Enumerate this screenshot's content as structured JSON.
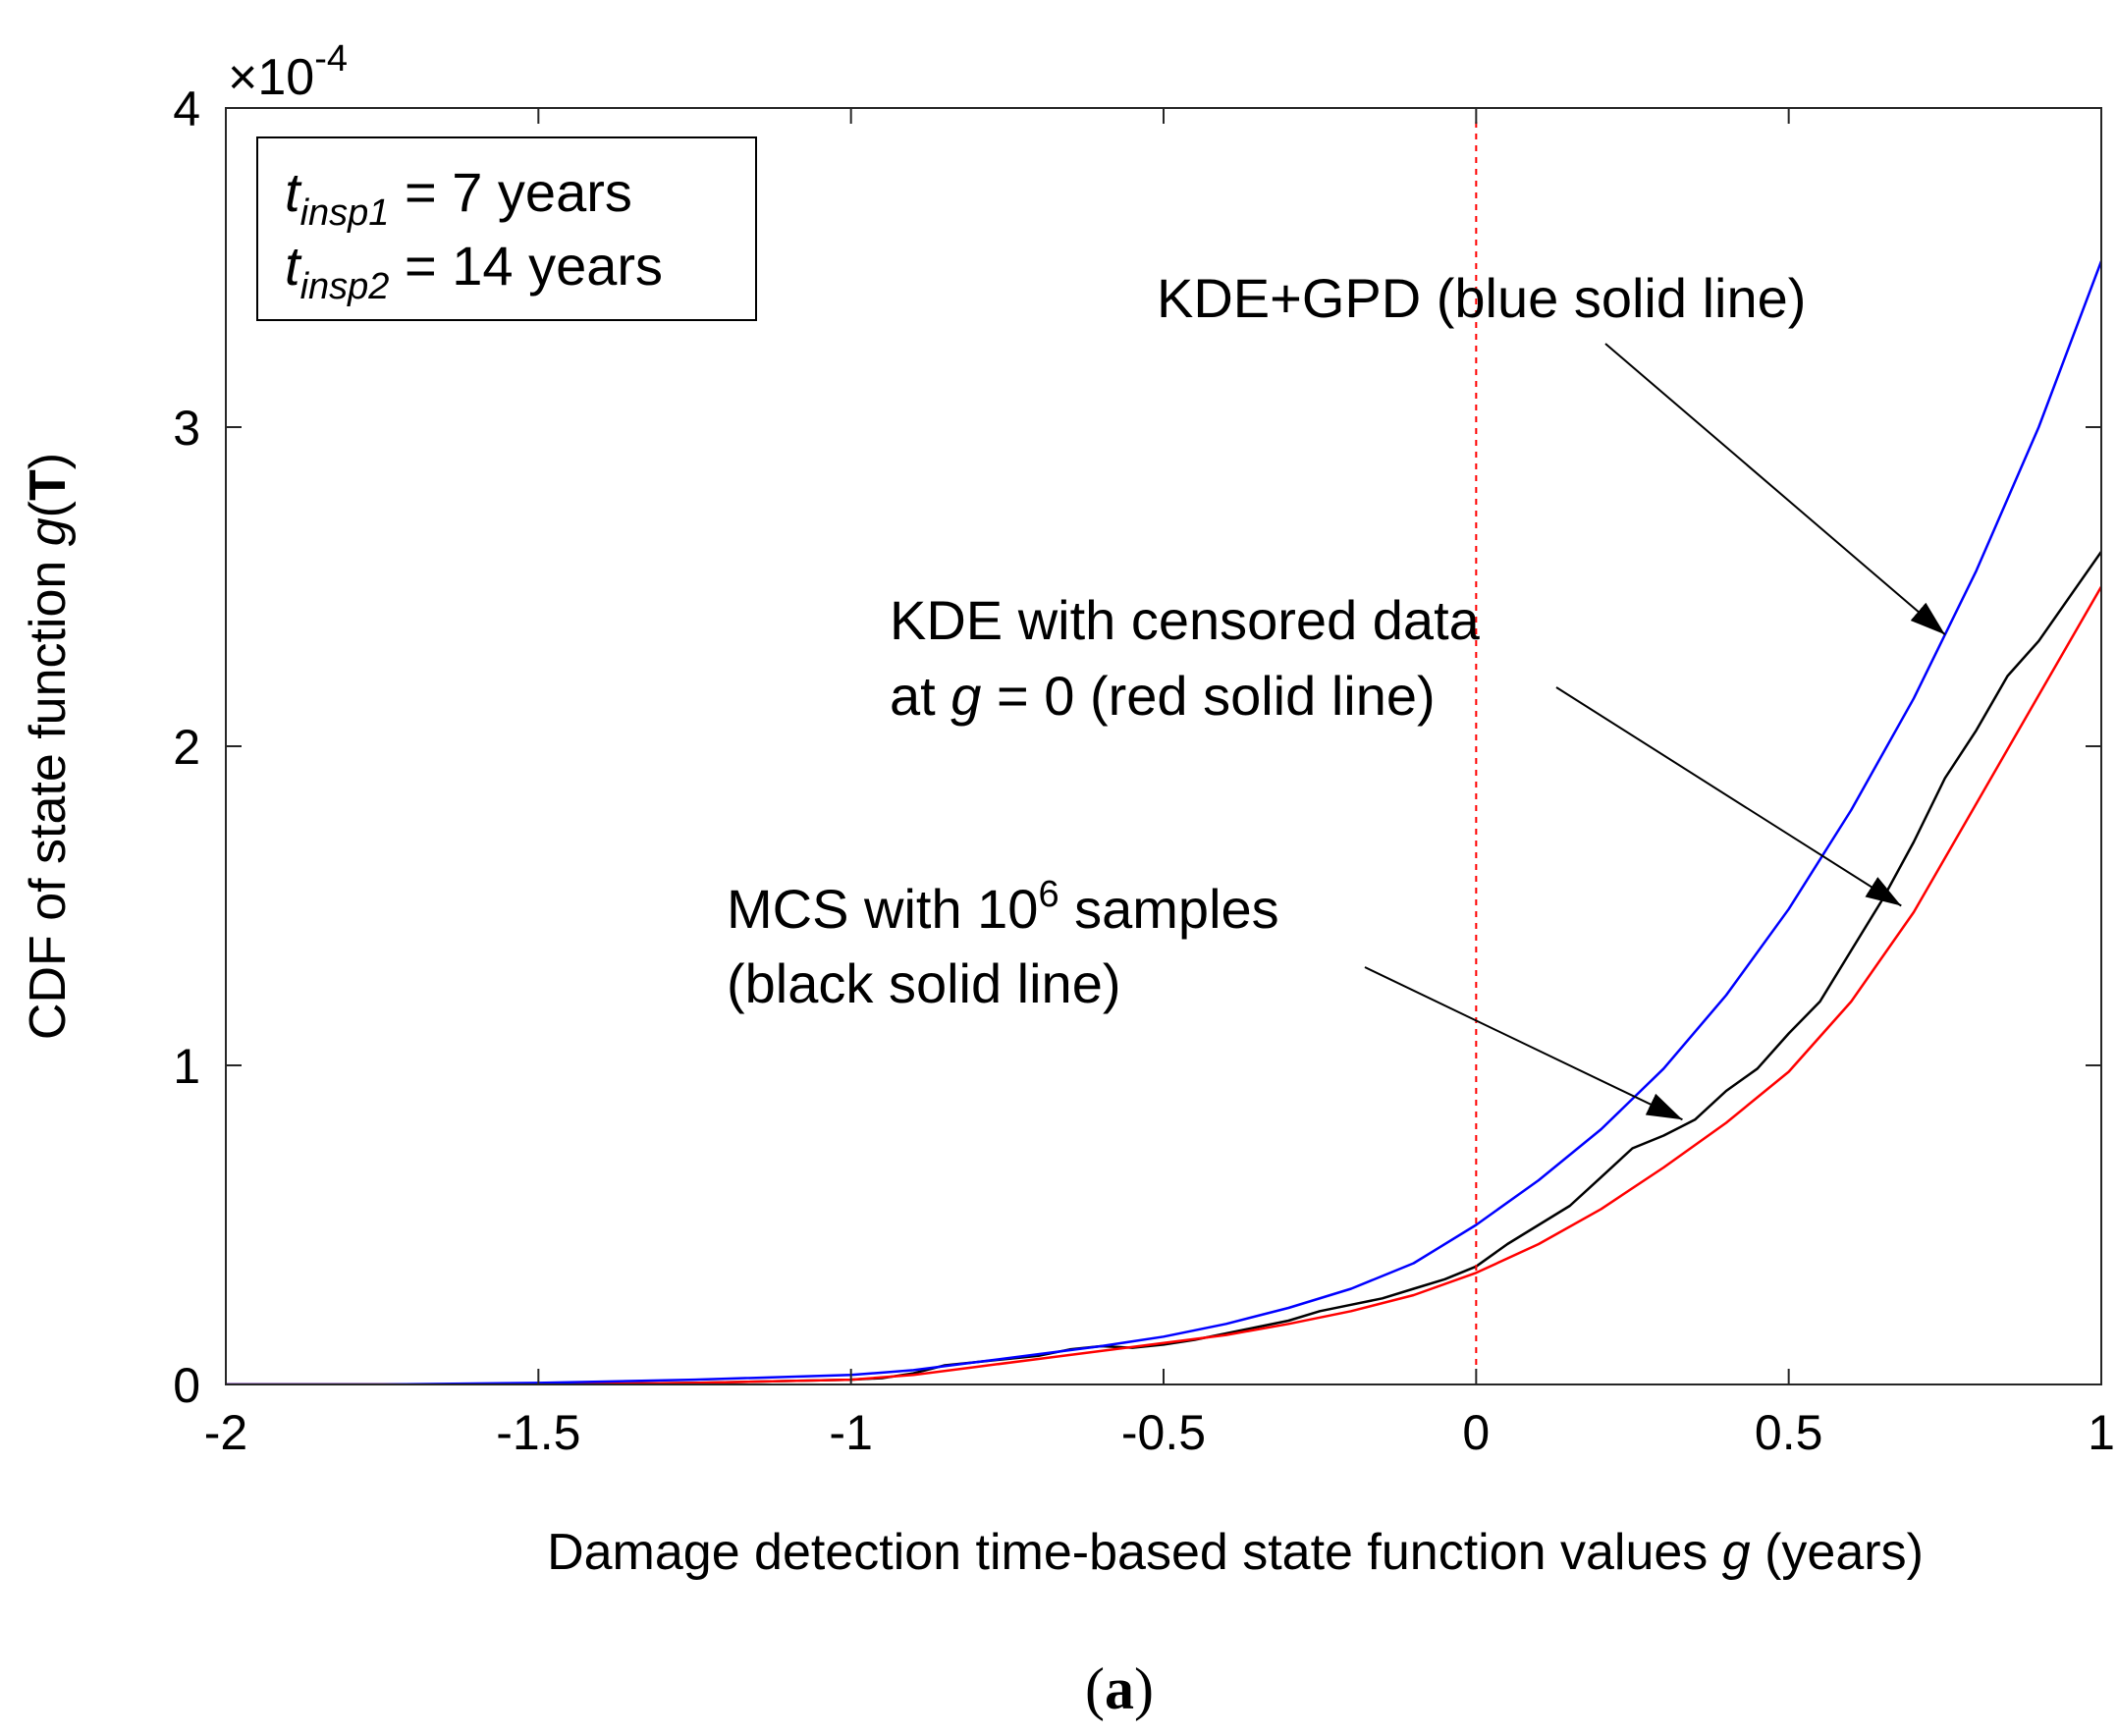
{
  "chart_data": {
    "type": "line",
    "title": "",
    "xlabel": {
      "pre": "Damage detection time-based state function values ",
      "var": "g",
      "post": " (years)"
    },
    "ylabel": {
      "pre": "CDF of state function ",
      "var": "g",
      "open": "(",
      "bold": "T",
      "close": ")"
    },
    "xlim": [
      -2,
      1
    ],
    "ylim": [
      0,
      4
    ],
    "x_ticks": [
      -2,
      -1.5,
      -1,
      -0.5,
      0,
      0.5,
      1
    ],
    "x_tick_labels": [
      "-2",
      "-1.5",
      "-1",
      "-0.5",
      "0",
      "0.5",
      "1"
    ],
    "y_ticks": [
      0,
      1,
      2,
      3,
      4
    ],
    "y_tick_labels": [
      "0",
      "1",
      "2",
      "3",
      "4"
    ],
    "y_multiplier": {
      "base": "×10",
      "exp": "-4"
    },
    "grid": false,
    "vline": {
      "x": 0,
      "color": "#ff0000",
      "style": "dashed"
    },
    "series": [
      {
        "name": "KDE+GPD (blue solid line)",
        "color": "#0000ff",
        "x": [
          -2,
          -1.75,
          -1.5,
          -1.25,
          -1.0,
          -0.9,
          -0.8,
          -0.7,
          -0.6,
          -0.5,
          -0.4,
          -0.3,
          -0.2,
          -0.1,
          0.0,
          0.1,
          0.2,
          0.3,
          0.4,
          0.5,
          0.6,
          0.7,
          0.8,
          0.9,
          1.0
        ],
        "values": [
          0.0,
          0.0,
          0.005,
          0.015,
          0.03,
          0.045,
          0.07,
          0.095,
          0.12,
          0.15,
          0.19,
          0.24,
          0.3,
          0.38,
          0.5,
          0.64,
          0.8,
          0.99,
          1.22,
          1.49,
          1.8,
          2.15,
          2.55,
          3.0,
          3.52
        ]
      },
      {
        "name": "KDE with censored data at g = 0 (red solid line)",
        "color": "#ff0000",
        "x": [
          -2,
          -1.5,
          -1.25,
          -1.0,
          -0.9,
          -0.8,
          -0.7,
          -0.6,
          -0.5,
          -0.4,
          -0.3,
          -0.2,
          -0.1,
          0.0,
          0.1,
          0.2,
          0.3,
          0.4,
          0.5,
          0.6,
          0.7,
          0.8,
          0.9,
          1.0
        ],
        "values": [
          0.0,
          0.0,
          0.005,
          0.015,
          0.03,
          0.055,
          0.08,
          0.105,
          0.13,
          0.155,
          0.19,
          0.23,
          0.28,
          0.35,
          0.44,
          0.55,
          0.68,
          0.82,
          0.98,
          1.2,
          1.48,
          1.82,
          2.16,
          2.5
        ]
      },
      {
        "name": "MCS with 10^6 samples (black solid line)",
        "color": "#000000",
        "x": [
          -2,
          -1.5,
          -1.25,
          -1.0,
          -0.95,
          -0.9,
          -0.85,
          -0.8,
          -0.75,
          -0.7,
          -0.65,
          -0.6,
          -0.55,
          -0.5,
          -0.45,
          -0.4,
          -0.35,
          -0.3,
          -0.25,
          -0.2,
          -0.15,
          -0.1,
          -0.05,
          0.0,
          0.05,
          0.1,
          0.15,
          0.2,
          0.25,
          0.3,
          0.35,
          0.4,
          0.45,
          0.5,
          0.55,
          0.6,
          0.65,
          0.7,
          0.75,
          0.8,
          0.85,
          0.9,
          0.95,
          1.0
        ],
        "values": [
          0.0,
          0.0,
          0.005,
          0.015,
          0.02,
          0.035,
          0.06,
          0.07,
          0.08,
          0.09,
          0.11,
          0.12,
          0.115,
          0.125,
          0.14,
          0.16,
          0.18,
          0.2,
          0.23,
          0.25,
          0.27,
          0.3,
          0.33,
          0.37,
          0.44,
          0.5,
          0.56,
          0.65,
          0.74,
          0.78,
          0.83,
          0.92,
          0.99,
          1.1,
          1.2,
          1.36,
          1.52,
          1.7,
          1.9,
          2.05,
          2.22,
          2.33,
          2.47,
          2.61
        ]
      }
    ],
    "annotations": [
      {
        "lines": [
          {
            "pre": "KDE+GPD (blue solid line)"
          }
        ],
        "target": [
          0.75,
          2.35
        ]
      },
      {
        "lines": [
          {
            "pre": "KDE with censored data"
          },
          {
            "pre": "at ",
            "var": "g",
            "post": " = 0 (red solid line)"
          }
        ],
        "target": [
          0.68,
          1.5
        ]
      },
      {
        "lines": [
          {
            "pre": "MCS with 10",
            "sup": "6",
            "post": " samples"
          },
          {
            "pre": "(black solid line)"
          }
        ],
        "target": [
          0.33,
          0.83
        ]
      }
    ],
    "legend_box": {
      "placement": "top-left",
      "lines": [
        {
          "var": "t",
          "sub": "insp1",
          "text": " = 7 years"
        },
        {
          "var": "t",
          "sub": "insp2",
          "text": " = 14 years"
        }
      ]
    }
  },
  "caption": {
    "open": "(",
    "letter": "a",
    "close": ")"
  }
}
